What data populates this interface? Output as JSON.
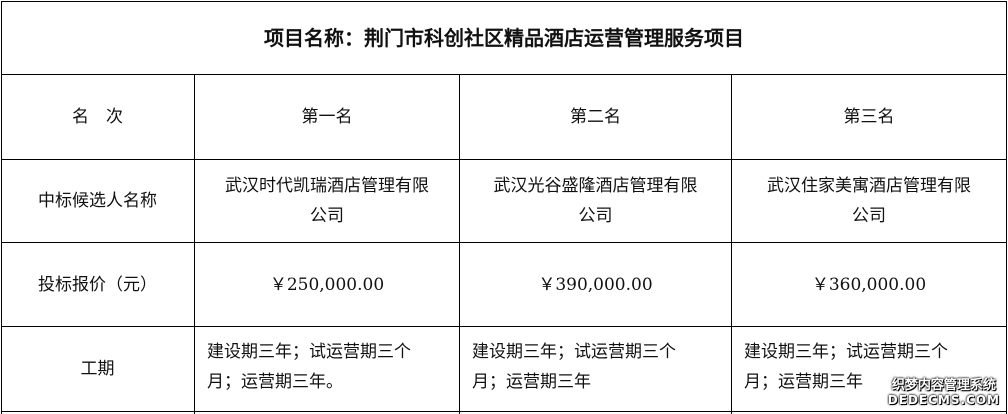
{
  "title": "项目名称：荆门市科创社区精品酒店运营管理服务项目",
  "header": {
    "label": "名　次",
    "ranks": [
      "第一名",
      "第二名",
      "第三名"
    ]
  },
  "rows": [
    {
      "label": "中标候选人名称",
      "values": [
        [
          "武汉时代凯瑞酒店管理有限",
          "公司"
        ],
        [
          "武汉光谷盛隆酒店管理有限",
          "公司"
        ],
        [
          "武汉住家美寓酒店管理有限",
          "公司"
        ]
      ]
    },
    {
      "label": "投标报价（元）",
      "values": [
        "￥250,000.00",
        "￥390,000.00",
        "￥360,000.00"
      ]
    },
    {
      "label": "工期",
      "values": [
        [
          "建设期三年；试运营期三个",
          "月；运营期三年。"
        ],
        [
          "建设期三年；试运营期三个",
          "月；运营期三年"
        ],
        [
          "建设期三年；试运营期三个",
          "月；运营期三年"
        ]
      ]
    }
  ],
  "watermark": {
    "line1": "织梦内容管理系统",
    "line2": "DEDECMS.COM"
  }
}
